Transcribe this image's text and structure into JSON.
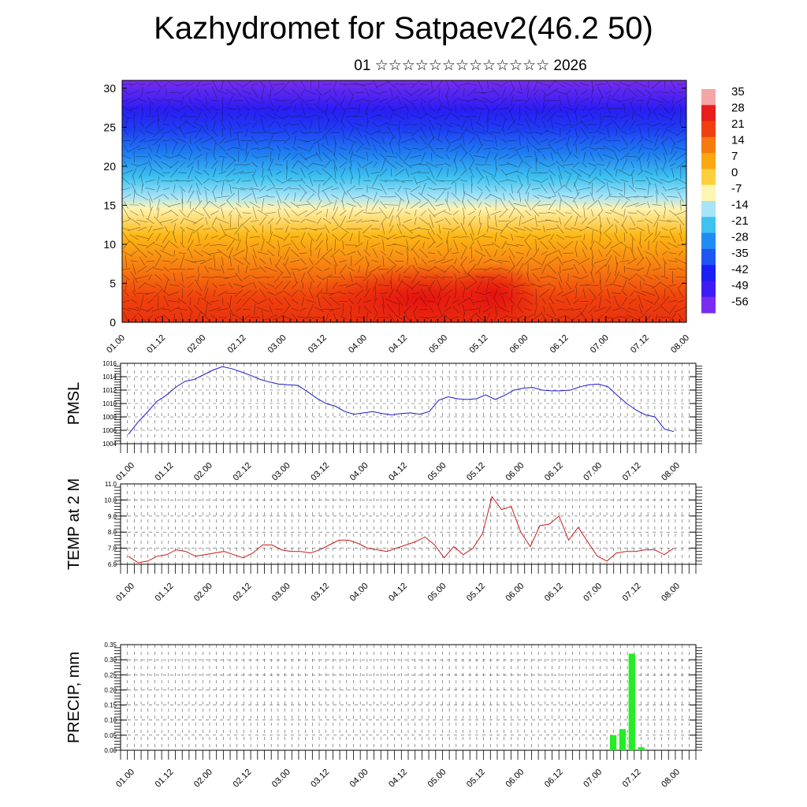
{
  "title": "Kazhydromet for Satpaev2(46.2 50)",
  "subtitle": "01 ☆☆☆☆☆☆☆☆☆☆☆☆☆ 2026",
  "x_ticks": [
    "01.00",
    "01.12",
    "02.00",
    "02.12",
    "03.00",
    "03.12",
    "04.00",
    "04.12",
    "05.00",
    "05.12",
    "06.00",
    "06.12",
    "07.00",
    "07.12",
    "08.00"
  ],
  "chart_data": [
    {
      "type": "heatmap",
      "name": "cross-section",
      "y_ticks": [
        0,
        5,
        10,
        15,
        20,
        25,
        30
      ],
      "ylim": [
        0,
        31
      ],
      "colorbar_labels": [
        "35",
        "28",
        "21",
        "14",
        "7",
        "0",
        "-7",
        "-14",
        "-21",
        "-28",
        "-35",
        "-42",
        "-49",
        "-56"
      ],
      "colorbar_colors": [
        "#f4a6a6",
        "#e81e1e",
        "#f04010",
        "#f77a10",
        "#fba70f",
        "#fed03c",
        "#fdf6b0",
        "#a6e4f7",
        "#3dc2f0",
        "#1e8cf2",
        "#1f55f3",
        "#1c1ff5",
        "#3f1cf3",
        "#7a2cef"
      ]
    },
    {
      "type": "line",
      "ylabel": "PMSL",
      "ylim": [
        1004,
        1016
      ],
      "y_ticks": [
        1004,
        1006,
        1008,
        1010,
        1012,
        1014,
        1016
      ],
      "color": "#1a1acc",
      "values": [
        1005.4,
        1007.2,
        1008.7,
        1010.3,
        1011.2,
        1012.4,
        1013.3,
        1013.6,
        1014.3,
        1015.0,
        1015.5,
        1015.2,
        1014.7,
        1014.2,
        1013.6,
        1013.2,
        1012.9,
        1012.8,
        1012.7,
        1011.8,
        1010.8,
        1010.0,
        1009.6,
        1008.8,
        1008.4,
        1008.6,
        1008.8,
        1008.5,
        1008.3,
        1008.5,
        1008.6,
        1008.4,
        1008.8,
        1010.5,
        1011.0,
        1010.7,
        1010.6,
        1010.7,
        1011.3,
        1010.6,
        1011.2,
        1012.0,
        1012.3,
        1012.4,
        1012.0,
        1011.9,
        1011.9,
        1012.0,
        1012.5,
        1012.8,
        1012.9,
        1012.5,
        1011.2,
        1010.0,
        1009.0,
        1008.3,
        1008.0,
        1006.2,
        1005.8
      ]
    },
    {
      "type": "line",
      "ylabel": "TEMP at 2 M",
      "ylim": [
        6,
        11
      ],
      "y_ticks": [
        "6.0",
        "7.0",
        "8.0",
        "9.0",
        "10.0",
        "11.0"
      ],
      "color": "#cc1a1a",
      "values": [
        6.5,
        6.1,
        6.2,
        6.5,
        6.6,
        6.9,
        6.8,
        6.5,
        6.6,
        6.7,
        6.8,
        6.6,
        6.4,
        6.7,
        7.2,
        7.2,
        6.9,
        6.8,
        6.8,
        6.7,
        6.9,
        7.2,
        7.5,
        7.5,
        7.3,
        7.0,
        6.9,
        6.8,
        7.0,
        7.2,
        7.4,
        7.7,
        7.2,
        6.4,
        7.1,
        6.6,
        7.0,
        7.9,
        10.2,
        9.4,
        9.6,
        8.0,
        7.1,
        8.4,
        8.5,
        9.0,
        7.5,
        8.3,
        7.4,
        6.5,
        6.2,
        6.7,
        6.8,
        6.8,
        6.9,
        6.9,
        6.6,
        7.0
      ]
    },
    {
      "type": "bar",
      "ylabel": "PRECIP, mm",
      "ylim": [
        0,
        0.35
      ],
      "y_ticks": [
        "0.00",
        "0.05",
        "0.10",
        "0.15",
        "0.20",
        "0.25",
        "0.30",
        "0.35"
      ],
      "color": "#22ee22",
      "bars": [
        {
          "x": 6.18,
          "value": 0.05
        },
        {
          "x": 6.3,
          "value": 0.07
        },
        {
          "x": 6.42,
          "value": 0.32
        },
        {
          "x": 6.54,
          "value": 0.01
        }
      ]
    }
  ]
}
